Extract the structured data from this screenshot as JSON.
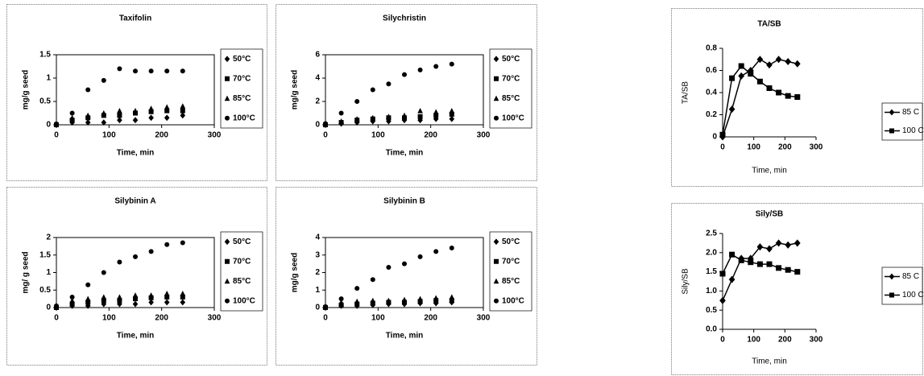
{
  "chart_data": [
    {
      "type": "scatter",
      "title": "Taxifolin",
      "xlabel": "Time, min",
      "ylabel": "mg/g seed",
      "x": [
        0,
        30,
        60,
        90,
        120,
        150,
        180,
        210,
        240
      ],
      "xlim": [
        0,
        300
      ],
      "xticks": [
        0,
        100,
        200,
        300
      ],
      "ylim": [
        0,
        1.5
      ],
      "yticks": [
        0,
        0.5,
        1,
        1.5
      ],
      "series": [
        {
          "name": "50°C",
          "color": "#000000",
          "marker": "diamond",
          "values": [
            0,
            0.05,
            0.05,
            0.05,
            0.1,
            0.1,
            0.15,
            0.15,
            0.2
          ]
        },
        {
          "name": "70°C",
          "color": "#000000",
          "marker": "square",
          "values": [
            0,
            0.1,
            0.15,
            0.2,
            0.2,
            0.25,
            0.28,
            0.3,
            0.3
          ]
        },
        {
          "name": "85°C",
          "color": "#000000",
          "marker": "triangle",
          "values": [
            0,
            0.15,
            0.2,
            0.25,
            0.3,
            0.3,
            0.35,
            0.38,
            0.4
          ]
        },
        {
          "name": "100°C",
          "color": "#000000",
          "marker": "circle",
          "values": [
            0.02,
            0.25,
            0.75,
            0.95,
            1.2,
            1.15,
            1.15,
            1.15,
            1.15
          ]
        }
      ]
    },
    {
      "type": "scatter",
      "title": "Silychristin",
      "xlabel": "Time, min",
      "ylabel": "mg/g seed",
      "x": [
        0,
        30,
        60,
        90,
        120,
        150,
        180,
        210,
        240
      ],
      "xlim": [
        0,
        300
      ],
      "xticks": [
        0,
        100,
        200,
        300
      ],
      "ylim": [
        0,
        6
      ],
      "yticks": [
        0,
        2,
        4,
        6
      ],
      "series": [
        {
          "name": "50°C",
          "color": "#000000",
          "marker": "diamond",
          "values": [
            0,
            0.1,
            0.2,
            0.3,
            0.3,
            0.4,
            0.4,
            0.5,
            0.5
          ]
        },
        {
          "name": "70°C",
          "color": "#000000",
          "marker": "square",
          "values": [
            0,
            0.2,
            0.4,
            0.5,
            0.6,
            0.6,
            0.7,
            0.8,
            0.9
          ]
        },
        {
          "name": "85°C",
          "color": "#000000",
          "marker": "triangle",
          "values": [
            0,
            0.3,
            0.5,
            0.6,
            0.7,
            0.8,
            1.2,
            1.1,
            1.2
          ]
        },
        {
          "name": "100°C",
          "color": "#000000",
          "marker": "circle",
          "values": [
            0.1,
            1,
            2,
            3,
            3.5,
            4.3,
            4.7,
            5,
            5.2
          ]
        }
      ]
    },
    {
      "type": "scatter",
      "title": "Silybinin A",
      "xlabel": "Time, min",
      "ylabel": "mg/ g seed",
      "x": [
        0,
        30,
        60,
        90,
        120,
        150,
        180,
        210,
        240
      ],
      "xlim": [
        0,
        300
      ],
      "xticks": [
        0,
        100,
        200,
        300
      ],
      "ylim": [
        0,
        2
      ],
      "yticks": [
        0,
        0.5,
        1,
        1.5,
        2
      ],
      "series": [
        {
          "name": "50°C",
          "color": "#000000",
          "marker": "diamond",
          "values": [
            0,
            0.05,
            0.05,
            0.1,
            0.1,
            0.1,
            0.15,
            0.15,
            0.15
          ]
        },
        {
          "name": "70°C",
          "color": "#000000",
          "marker": "square",
          "values": [
            0,
            0.1,
            0.15,
            0.2,
            0.2,
            0.25,
            0.28,
            0.3,
            0.3
          ]
        },
        {
          "name": "85°C",
          "color": "#000000",
          "marker": "triangle",
          "values": [
            0,
            0.2,
            0.25,
            0.3,
            0.3,
            0.35,
            0.35,
            0.4,
            0.4
          ]
        },
        {
          "name": "100°C",
          "color": "#000000",
          "marker": "circle",
          "values": [
            0.05,
            0.3,
            0.65,
            1,
            1.3,
            1.45,
            1.6,
            1.8,
            1.85
          ]
        }
      ]
    },
    {
      "type": "scatter",
      "title": "Silybinin B",
      "xlabel": "Time, min",
      "ylabel": "mg/g seed",
      "x": [
        0,
        30,
        60,
        90,
        120,
        150,
        180,
        210,
        240
      ],
      "xlim": [
        0,
        300
      ],
      "xticks": [
        0,
        100,
        200,
        300
      ],
      "ylim": [
        0,
        4
      ],
      "yticks": [
        0,
        1,
        2,
        3,
        4
      ],
      "series": [
        {
          "name": "50°C",
          "color": "#000000",
          "marker": "diamond",
          "values": [
            0,
            0.1,
            0.1,
            0.15,
            0.2,
            0.2,
            0.25,
            0.25,
            0.3
          ]
        },
        {
          "name": "70°C",
          "color": "#000000",
          "marker": "square",
          "values": [
            0,
            0.15,
            0.2,
            0.25,
            0.3,
            0.3,
            0.35,
            0.4,
            0.4
          ]
        },
        {
          "name": "85°C",
          "color": "#000000",
          "marker": "triangle",
          "values": [
            0,
            0.3,
            0.35,
            0.4,
            0.4,
            0.45,
            0.5,
            0.55,
            0.6
          ]
        },
        {
          "name": "100°C",
          "color": "#000000",
          "marker": "circle",
          "values": [
            0.05,
            0.5,
            1.1,
            1.6,
            2.3,
            2.5,
            2.9,
            3.2,
            3.4
          ]
        }
      ]
    },
    {
      "type": "line",
      "title": "TA/SB",
      "xlabel": "Time, min",
      "ylabel": "TA/SB",
      "x": [
        0,
        30,
        60,
        90,
        120,
        150,
        180,
        210,
        240
      ],
      "xlim": [
        0,
        300
      ],
      "xticks": [
        0,
        100,
        200,
        300
      ],
      "ylim": [
        0,
        0.8
      ],
      "yticks": [
        0,
        0.2,
        0.4,
        0.6,
        0.8
      ],
      "series": [
        {
          "name": "85 C",
          "color": "#000000",
          "marker": "diamond",
          "values": [
            0,
            0.25,
            0.55,
            0.6,
            0.7,
            0.65,
            0.7,
            0.68,
            0.66
          ]
        },
        {
          "name": "100 C",
          "color": "#000000",
          "marker": "square",
          "values": [
            0.02,
            0.53,
            0.64,
            0.57,
            0.5,
            0.44,
            0.4,
            0.37,
            0.36
          ]
        }
      ]
    },
    {
      "type": "line",
      "title": "Sily/SB",
      "xlabel": "Time, min",
      "ylabel": "Sily/SB",
      "x": [
        0,
        30,
        60,
        90,
        120,
        150,
        180,
        210,
        240
      ],
      "xlim": [
        0,
        300
      ],
      "xticks": [
        0,
        100,
        200,
        300
      ],
      "ylim": [
        0,
        2.5
      ],
      "yticks": [
        {
          "value": 0,
          "label": "0.0"
        },
        {
          "value": 0.5,
          "label": "0.5"
        },
        {
          "value": 1,
          "label": "1.0"
        },
        {
          "value": 1.5,
          "label": "1.5"
        },
        {
          "value": 2,
          "label": "2.0"
        },
        {
          "value": 2.5,
          "label": "2.5"
        }
      ],
      "series": [
        {
          "name": "85 C",
          "color": "#000000",
          "marker": "diamond",
          "values": [
            0.75,
            1.3,
            1.85,
            1.85,
            2.15,
            2.1,
            2.25,
            2.2,
            2.25
          ]
        },
        {
          "name": "100 C",
          "color": "#000000",
          "marker": "square",
          "values": [
            1.45,
            1.95,
            1.8,
            1.75,
            1.7,
            1.7,
            1.6,
            1.55,
            1.5
          ]
        }
      ]
    }
  ]
}
